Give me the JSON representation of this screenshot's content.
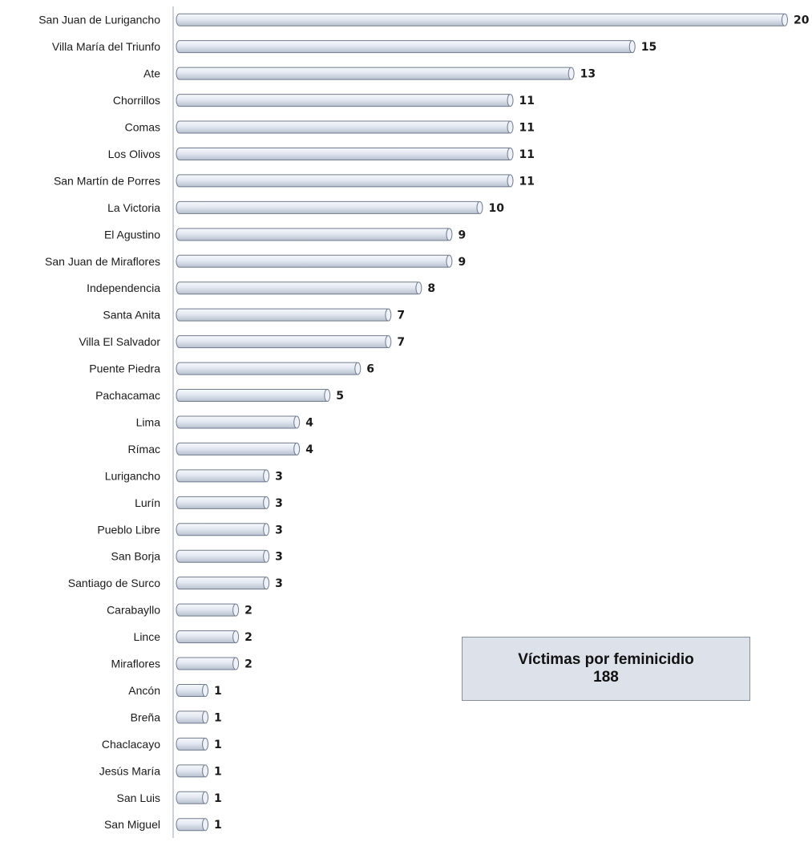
{
  "chart_data": {
    "type": "bar",
    "orientation": "horizontal",
    "categories": [
      "San Juan de Lurigancho",
      "Villa María del Triunfo",
      "Ate",
      "Chorrillos",
      "Comas",
      "Los Olivos",
      "San Martín de Porres",
      "La Victoria",
      "El Agustino",
      "San Juan de Miraflores",
      "Independencia",
      "Santa Anita",
      "Villa El Salvador",
      "Puente Piedra",
      "Pachacamac",
      "Lima",
      "Rímac",
      "Lurigancho",
      "Lurín",
      "Pueblo Libre",
      "San Borja",
      "Santiago de Surco",
      "Carabayllo",
      "Lince",
      "Miraflores",
      "Ancón",
      "Breña",
      "Chaclacayo",
      "Jesús María",
      "San Luis",
      "San Miguel"
    ],
    "values": [
      20,
      15,
      13,
      11,
      11,
      11,
      11,
      10,
      9,
      9,
      8,
      7,
      7,
      6,
      5,
      4,
      4,
      3,
      3,
      3,
      3,
      3,
      2,
      2,
      2,
      1,
      1,
      1,
      1,
      1,
      1
    ],
    "xlim": [
      0,
      20
    ],
    "grid": false,
    "legend": "none",
    "bar_color": "#dfe4ee",
    "bar_edge_color": "#6f7a8c"
  },
  "summary": {
    "title": "Víctimas por feminicidio",
    "total": "188"
  }
}
